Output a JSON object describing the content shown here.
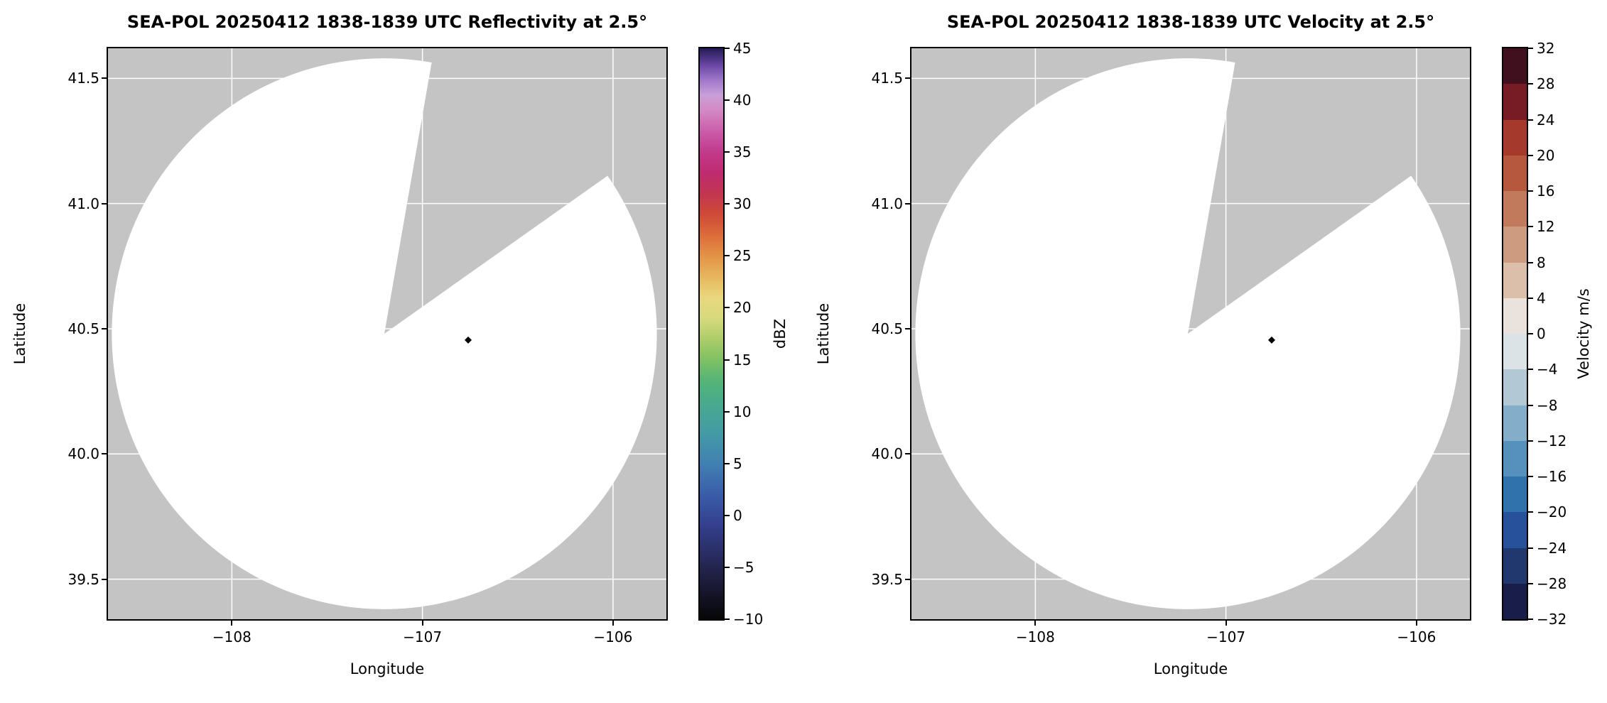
{
  "figure": {
    "background": "#ffffff",
    "masked_region_color": "#c4c4c4",
    "scan_area_color": "#ffffff",
    "grid_color": "#ffffff",
    "axes_border_color": "#000000"
  },
  "chart_data": [
    {
      "type": "radar_ppi",
      "field": "reflectivity",
      "title": "SEA-POL 20250412 1838-1839 UTC Reflectivity at 2.5°",
      "xlabel": "Longitude",
      "ylabel": "Latitude",
      "xlim": [
        -108.65,
        -105.72
      ],
      "ylim": [
        39.34,
        41.62
      ],
      "xticks": [
        -108,
        -107,
        -106
      ],
      "xtick_labels": [
        "−108",
        "−107",
        "−106"
      ],
      "yticks": [
        41.5,
        41.0,
        40.5,
        40.0,
        39.5
      ],
      "ytick_labels": [
        "41.5",
        "41.0",
        "40.5",
        "40.0",
        "39.5"
      ],
      "radar_center_lonlat": [
        -107.2,
        40.48
      ],
      "scan_radius_deg": {
        "lon": 1.43,
        "lat": 1.1
      },
      "blocked_sector_azimuth_deg": [
        10,
        55
      ],
      "marker": {
        "lon": -106.76,
        "lat": 40.455,
        "shape": "diamond",
        "color": "#000000"
      },
      "echoes": [],
      "coverage_note": "scan area blank (no echoes above threshold)",
      "colorbar": {
        "label": "dBZ",
        "min": -10,
        "max": 45,
        "style": "continuous",
        "ticks": [
          45,
          40,
          35,
          30,
          25,
          20,
          15,
          10,
          5,
          0,
          -5,
          -10
        ],
        "tick_labels": [
          "45",
          "40",
          "35",
          "30",
          "25",
          "20",
          "15",
          "10",
          "5",
          "0",
          "−5",
          "−10"
        ],
        "gradient_stops": [
          [
            -10,
            "#060607"
          ],
          [
            -7,
            "#191831"
          ],
          [
            -4,
            "#282b5e"
          ],
          [
            -1,
            "#333f8d"
          ],
          [
            2,
            "#3a5da9"
          ],
          [
            5,
            "#4180b2"
          ],
          [
            8,
            "#449ba5"
          ],
          [
            11,
            "#48ab8c"
          ],
          [
            13,
            "#55b476"
          ],
          [
            15,
            "#7fc163"
          ],
          [
            17,
            "#aecd6b"
          ],
          [
            19,
            "#d7da7c"
          ],
          [
            21,
            "#e9d77e"
          ],
          [
            23,
            "#e7b65c"
          ],
          [
            25,
            "#e39346"
          ],
          [
            27,
            "#dc6c3b"
          ],
          [
            29,
            "#cf4a37"
          ],
          [
            31,
            "#c23550"
          ],
          [
            33,
            "#bf2b70"
          ],
          [
            35,
            "#c23a8c"
          ],
          [
            37,
            "#cb5cab"
          ],
          [
            39,
            "#d489c4"
          ],
          [
            40.5,
            "#c99fd8"
          ],
          [
            42,
            "#9e76ca"
          ],
          [
            43.5,
            "#64439f"
          ],
          [
            45,
            "#241a55"
          ]
        ]
      }
    },
    {
      "type": "radar_ppi",
      "field": "velocity",
      "title": "SEA-POL 20250412 1838-1839 UTC Velocity at 2.5°",
      "xlabel": "Longitude",
      "ylabel": "Latitude",
      "xlim": [
        -108.65,
        -105.72
      ],
      "ylim": [
        39.34,
        41.62
      ],
      "xticks": [
        -108,
        -107,
        -106
      ],
      "xtick_labels": [
        "−108",
        "−107",
        "−106"
      ],
      "yticks": [
        41.5,
        41.0,
        40.5,
        40.0,
        39.5
      ],
      "ytick_labels": [
        "41.5",
        "41.0",
        "40.5",
        "40.0",
        "39.5"
      ],
      "radar_center_lonlat": [
        -107.2,
        40.48
      ],
      "scan_radius_deg": {
        "lon": 1.43,
        "lat": 1.1
      },
      "blocked_sector_azimuth_deg": [
        10,
        55
      ],
      "marker": {
        "lon": -106.76,
        "lat": 40.455,
        "shape": "diamond",
        "color": "#000000"
      },
      "echoes": [],
      "coverage_note": "scan area blank (no echoes above threshold)",
      "colorbar": {
        "label": "Velocity m/s",
        "min": -32,
        "max": 32,
        "style": "discrete",
        "ticks": [
          32,
          28,
          24,
          20,
          16,
          12,
          8,
          4,
          0,
          -4,
          -8,
          -12,
          -16,
          -20,
          -24,
          -28,
          -32
        ],
        "tick_labels": [
          "32",
          "28",
          "24",
          "20",
          "16",
          "12",
          "8",
          "4",
          "0",
          "−4",
          "−8",
          "−12",
          "−16",
          "−20",
          "−24",
          "−28",
          "−32"
        ],
        "segment_colors_bottom_to_top": [
          "#191d49",
          "#21386f",
          "#27519b",
          "#2f72ac",
          "#5591bc",
          "#84adc9",
          "#b2c8d5",
          "#dce3e6",
          "#eae2dd",
          "#dcbfab",
          "#cd9c80",
          "#c17a5b",
          "#b5583d",
          "#a4392c",
          "#771c25",
          "#40101e"
        ]
      }
    }
  ]
}
